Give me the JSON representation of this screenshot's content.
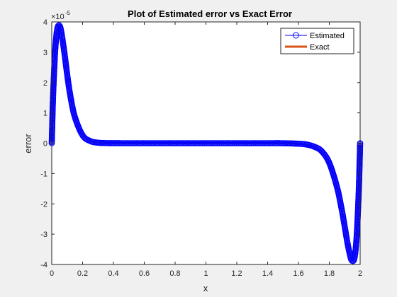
{
  "chart_data": {
    "type": "line",
    "title": "Plot of Estimated error vs Exact Error",
    "xlabel": "x",
    "ylabel": "error",
    "exponent_base": "×10",
    "exponent_power": "-5",
    "xlim": [
      0,
      2
    ],
    "ylim": [
      -4,
      4
    ],
    "xticks": [
      0,
      0.2,
      0.4,
      0.6,
      0.8,
      1,
      1.2,
      1.4,
      1.6,
      1.8,
      2
    ],
    "xtick_labels": [
      "0",
      "0.2",
      "0.4",
      "0.6",
      "0.8",
      "1",
      "1.2",
      "1.4",
      "1.6",
      "1.8",
      "2"
    ],
    "yticks": [
      -4,
      -3,
      -2,
      -1,
      0,
      1,
      2,
      3,
      4
    ],
    "ytick_labels": [
      "-4",
      "-3",
      "-2",
      "-1",
      "0",
      "1",
      "2",
      "3",
      "4"
    ],
    "grid": false,
    "legend_position": "top-right",
    "series": [
      {
        "name": "Estimated",
        "style": "circle-markers-line",
        "color": "#0000ff"
      },
      {
        "name": "Exact",
        "style": "thick-line",
        "color": "#d95319"
      }
    ],
    "x": [
      0,
      0.005,
      0.01,
      0.02,
      0.03,
      0.04,
      0.05,
      0.06,
      0.08,
      0.1,
      0.12,
      0.15,
      0.2,
      0.25,
      0.3,
      0.35,
      0.4,
      0.5,
      0.6,
      0.8,
      1.0,
      1.2,
      1.4,
      1.5,
      1.6,
      1.65,
      1.7,
      1.75,
      1.8,
      1.85,
      1.88,
      1.9,
      1.92,
      1.94,
      1.95,
      1.96,
      1.97,
      1.98,
      1.99,
      1.995,
      2.0
    ],
    "y": [
      0,
      0.95,
      1.73,
      2.86,
      3.55,
      3.85,
      3.88,
      3.72,
      3.06,
      2.27,
      1.58,
      0.86,
      0.26,
      0.07,
      0.017,
      0.004,
      0.001,
      0,
      0,
      0,
      0,
      0,
      0,
      -0.001,
      -0.017,
      -0.04,
      -0.11,
      -0.26,
      -0.65,
      -1.45,
      -2.17,
      -2.75,
      -3.35,
      -3.8,
      -3.88,
      -3.85,
      -3.55,
      -2.86,
      -1.73,
      -0.95,
      0
    ]
  }
}
